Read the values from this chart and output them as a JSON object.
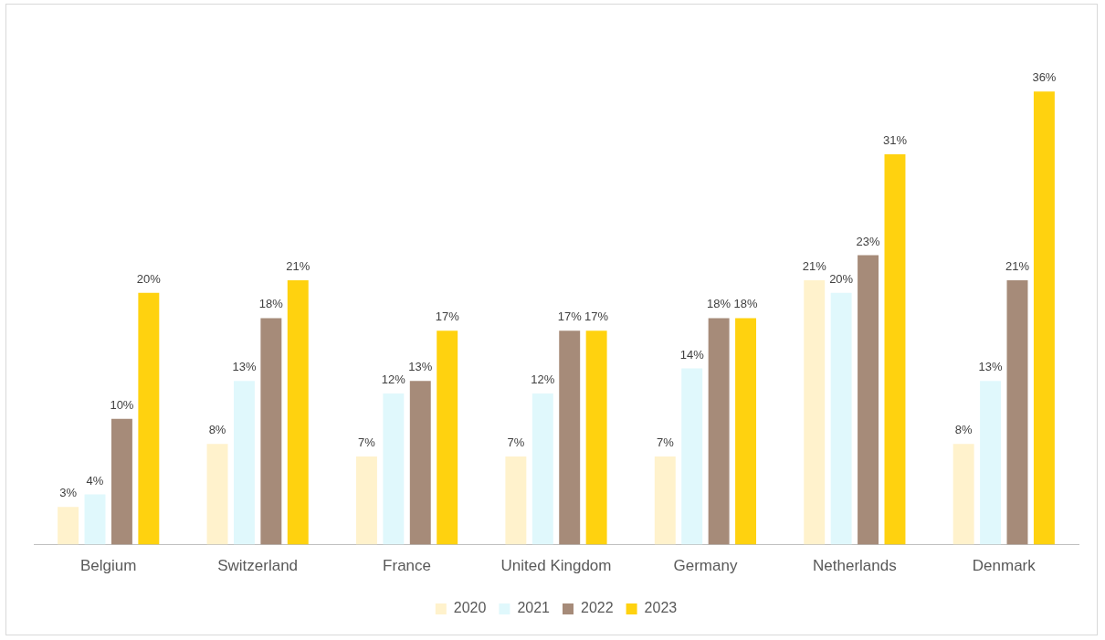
{
  "chart_data": {
    "type": "bar",
    "categories": [
      "Belgium",
      "Switzerland",
      "France",
      "United Kingdom",
      "Germany",
      "Netherlands",
      "Denmark"
    ],
    "series": [
      {
        "name": "2020",
        "color": "#fff2cc",
        "values": [
          3,
          8,
          7,
          7,
          7,
          21,
          8
        ],
        "value_labels": [
          "3%",
          "8%",
          "7%",
          "7%",
          "7%",
          "21%",
          "8%"
        ]
      },
      {
        "name": "2021",
        "color": "#e0f8fc",
        "values": [
          4,
          13,
          12,
          12,
          14,
          20,
          13
        ],
        "value_labels": [
          "4%",
          "13%",
          "12%",
          "12%",
          "14%",
          "20%",
          "13%"
        ]
      },
      {
        "name": "2022",
        "color": "#a68b79",
        "values": [
          10,
          18,
          13,
          17,
          18,
          23,
          21
        ],
        "value_labels": [
          "10%",
          "18%",
          "13%",
          "17%",
          "18%",
          "23%",
          "21%"
        ]
      },
      {
        "name": "2023",
        "color": "#ffd20f",
        "values": [
          20,
          21,
          17,
          17,
          18,
          31,
          36
        ],
        "value_labels": [
          "20%",
          "21%",
          "17%",
          "17%",
          "18%",
          "31%",
          "36%"
        ]
      }
    ],
    "legend": "bottom",
    "grid": false
  }
}
